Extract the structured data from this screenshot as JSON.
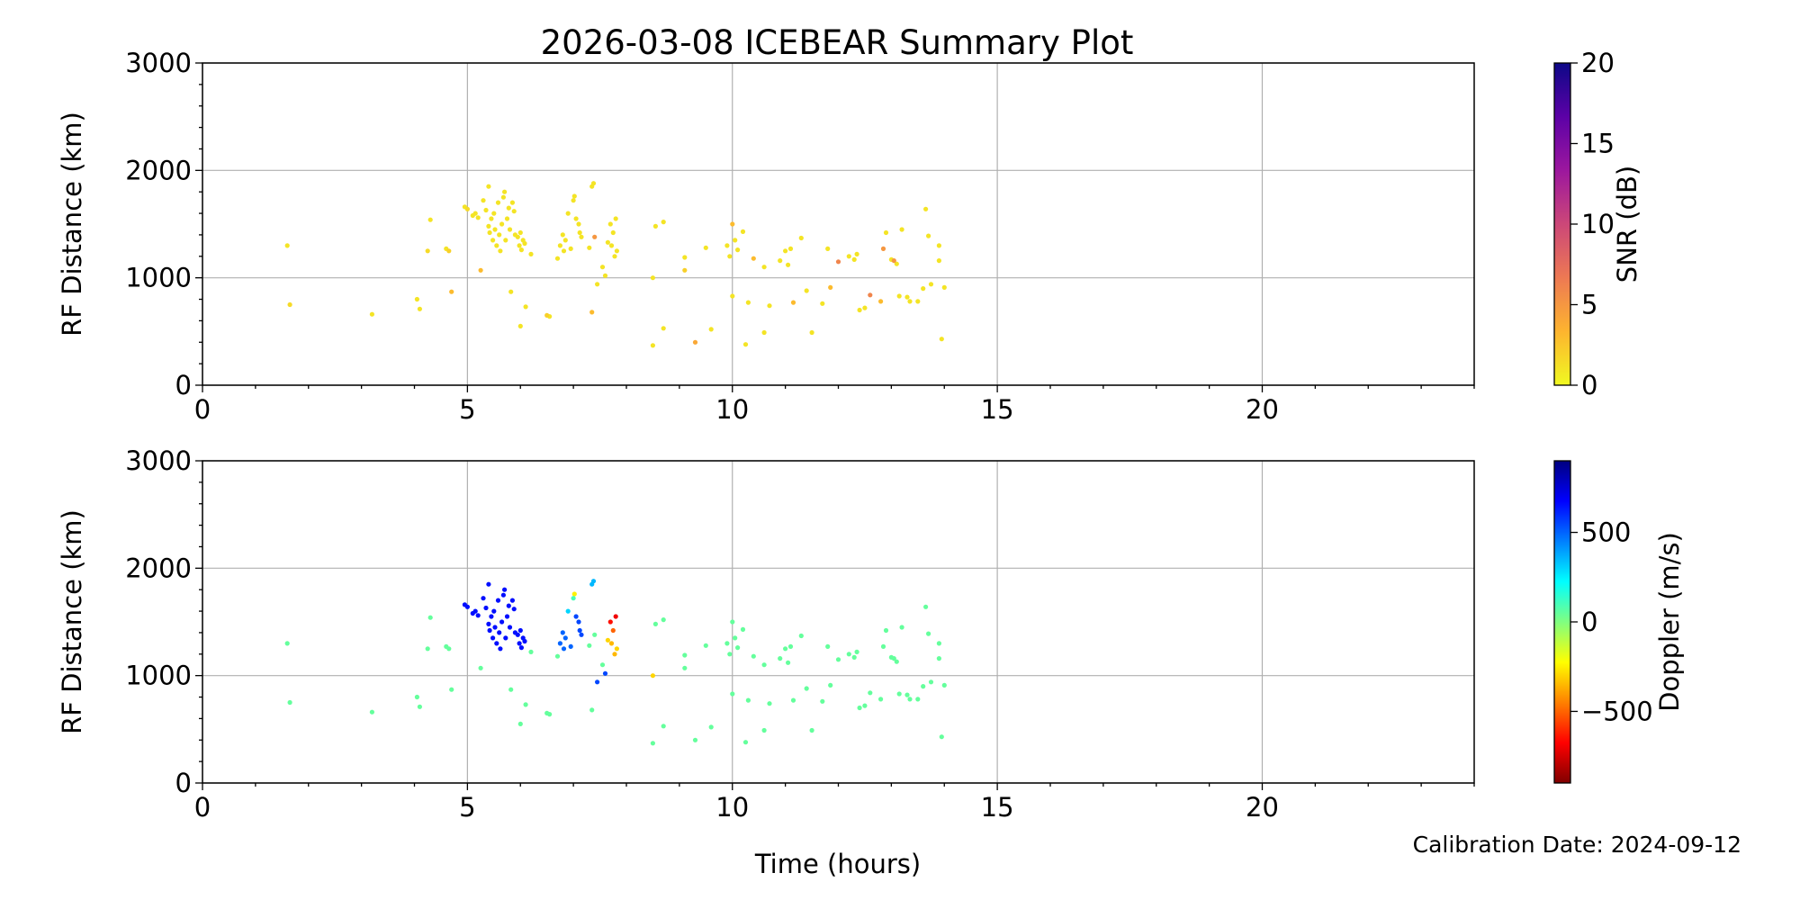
{
  "title": "2026-03-08 ICEBEAR Summary Plot",
  "calibration": "Calibration Date: 2024-09-12",
  "chart_data": [
    {
      "type": "scatter",
      "panel": "top",
      "xlabel": "Time (hours)",
      "ylabel": "RF Distance (km)",
      "xlim": [
        0,
        24
      ],
      "ylim": [
        0,
        3000
      ],
      "xticks": [
        0,
        5,
        10,
        15,
        20
      ],
      "yticks": [
        0,
        1000,
        2000,
        3000
      ],
      "grid": true,
      "colorbar": {
        "label": "SNR (dB)",
        "range": [
          0,
          20
        ],
        "ticks": [
          0,
          5,
          10,
          15,
          20
        ],
        "colormap": "plasma_r",
        "colors": [
          "#f0f921",
          "#fdb42f",
          "#ed7953",
          "#cc4778",
          "#9c179e",
          "#5c01a6",
          "#0d0887"
        ]
      },
      "points": [
        [
          1.6,
          1300,
          1
        ],
        [
          1.65,
          750,
          1.5
        ],
        [
          3.2,
          660,
          1
        ],
        [
          4.05,
          800,
          1
        ],
        [
          4.1,
          710,
          1
        ],
        [
          4.25,
          1250,
          1.5
        ],
        [
          4.3,
          1540,
          1
        ],
        [
          4.6,
          1270,
          1
        ],
        [
          4.65,
          1250,
          2
        ],
        [
          4.7,
          870,
          3
        ],
        [
          4.95,
          1660,
          1
        ],
        [
          5.0,
          1640,
          1.5
        ],
        [
          5.1,
          1580,
          1
        ],
        [
          5.15,
          1600,
          1
        ],
        [
          5.2,
          1560,
          1
        ],
        [
          5.25,
          1070,
          3
        ],
        [
          5.3,
          1720,
          1
        ],
        [
          5.35,
          1630,
          1
        ],
        [
          5.4,
          1850,
          1
        ],
        [
          5.4,
          1480,
          1
        ],
        [
          5.42,
          1420,
          1
        ],
        [
          5.45,
          1550,
          1
        ],
        [
          5.48,
          1350,
          1
        ],
        [
          5.5,
          1600,
          1
        ],
        [
          5.52,
          1450,
          1
        ],
        [
          5.55,
          1300,
          1
        ],
        [
          5.58,
          1700,
          1
        ],
        [
          5.6,
          1400,
          1
        ],
        [
          5.62,
          1250,
          1
        ],
        [
          5.65,
          1500,
          1
        ],
        [
          5.68,
          1750,
          1
        ],
        [
          5.7,
          1800,
          1
        ],
        [
          5.72,
          1350,
          1
        ],
        [
          5.75,
          1550,
          1
        ],
        [
          5.78,
          1650,
          1
        ],
        [
          5.8,
          1450,
          1
        ],
        [
          5.82,
          870,
          1
        ],
        [
          5.85,
          1700,
          1
        ],
        [
          5.88,
          1620,
          1
        ],
        [
          5.9,
          1400,
          1
        ],
        [
          5.95,
          1380,
          1
        ],
        [
          5.98,
          1300,
          1
        ],
        [
          6.0,
          1420,
          1
        ],
        [
          6.02,
          1260,
          1
        ],
        [
          6.05,
          1350,
          1
        ],
        [
          6.08,
          1320,
          1
        ],
        [
          6.0,
          550,
          1
        ],
        [
          6.1,
          730,
          1
        ],
        [
          6.2,
          1220,
          1
        ],
        [
          6.5,
          650,
          2
        ],
        [
          6.55,
          640,
          1
        ],
        [
          6.7,
          1180,
          1
        ],
        [
          6.75,
          1300,
          1
        ],
        [
          6.8,
          1400,
          1
        ],
        [
          6.82,
          1250,
          1
        ],
        [
          6.85,
          1350,
          1
        ],
        [
          6.9,
          1600,
          1
        ],
        [
          6.95,
          1270,
          1
        ],
        [
          7.0,
          1720,
          1
        ],
        [
          7.02,
          1760,
          1
        ],
        [
          7.05,
          1550,
          1
        ],
        [
          7.1,
          1500,
          1
        ],
        [
          7.12,
          1420,
          1
        ],
        [
          7.15,
          1380,
          1
        ],
        [
          7.3,
          1280,
          1
        ],
        [
          7.35,
          1850,
          1
        ],
        [
          7.38,
          1880,
          1
        ],
        [
          7.4,
          1380,
          5
        ],
        [
          7.35,
          680,
          3
        ],
        [
          7.45,
          940,
          1
        ],
        [
          7.55,
          1100,
          1
        ],
        [
          7.6,
          1020,
          1
        ],
        [
          7.65,
          1330,
          1
        ],
        [
          7.7,
          1500,
          1
        ],
        [
          7.72,
          1300,
          1
        ],
        [
          7.75,
          1420,
          1
        ],
        [
          7.78,
          1200,
          1
        ],
        [
          7.8,
          1550,
          1
        ],
        [
          7.82,
          1250,
          1
        ],
        [
          8.5,
          1000,
          1
        ],
        [
          8.5,
          370,
          1
        ],
        [
          8.55,
          1480,
          1
        ],
        [
          8.7,
          1520,
          1
        ],
        [
          8.7,
          530,
          1
        ],
        [
          9.1,
          1190,
          1
        ],
        [
          9.1,
          1070,
          2
        ],
        [
          9.3,
          400,
          4
        ],
        [
          9.5,
          1280,
          1
        ],
        [
          9.6,
          520,
          1
        ],
        [
          9.9,
          1300,
          1
        ],
        [
          9.95,
          1200,
          1
        ],
        [
          10.0,
          830,
          1
        ],
        [
          10.0,
          1500,
          3
        ],
        [
          10.05,
          1350,
          1
        ],
        [
          10.1,
          1260,
          1
        ],
        [
          10.2,
          1430,
          1
        ],
        [
          10.25,
          380,
          1
        ],
        [
          10.3,
          770,
          1
        ],
        [
          10.4,
          1180,
          3
        ],
        [
          10.6,
          490,
          1
        ],
        [
          10.6,
          1100,
          1
        ],
        [
          10.7,
          740,
          1
        ],
        [
          10.9,
          1160,
          1
        ],
        [
          11.0,
          1250,
          1
        ],
        [
          11.05,
          1120,
          1
        ],
        [
          11.1,
          1270,
          1
        ],
        [
          11.15,
          770,
          3
        ],
        [
          11.3,
          1370,
          1
        ],
        [
          11.4,
          880,
          1
        ],
        [
          11.5,
          490,
          1
        ],
        [
          11.7,
          760,
          1
        ],
        [
          11.8,
          1270,
          1
        ],
        [
          11.85,
          910,
          3
        ],
        [
          12.0,
          1150,
          6
        ],
        [
          12.2,
          1200,
          1
        ],
        [
          12.3,
          1170,
          1
        ],
        [
          12.35,
          1220,
          1
        ],
        [
          12.4,
          700,
          1
        ],
        [
          12.5,
          720,
          1
        ],
        [
          12.6,
          840,
          6
        ],
        [
          12.8,
          780,
          3
        ],
        [
          12.85,
          1270,
          5
        ],
        [
          12.9,
          1420,
          1
        ],
        [
          13.0,
          1170,
          1
        ],
        [
          13.05,
          1160,
          5
        ],
        [
          13.1,
          1130,
          1
        ],
        [
          13.15,
          830,
          1
        ],
        [
          13.2,
          1450,
          1
        ],
        [
          13.3,
          820,
          1
        ],
        [
          13.35,
          780,
          1
        ],
        [
          13.5,
          780,
          1
        ],
        [
          13.6,
          900,
          1
        ],
        [
          13.65,
          1640,
          1
        ],
        [
          13.7,
          1390,
          1
        ],
        [
          13.75,
          940,
          1
        ],
        [
          13.9,
          1300,
          1
        ],
        [
          13.9,
          1160,
          1
        ],
        [
          13.95,
          430,
          1
        ],
        [
          14.0,
          910,
          1
        ]
      ]
    },
    {
      "type": "scatter",
      "panel": "bottom",
      "xlabel": "Time (hours)",
      "ylabel": "RF Distance (km)",
      "xlim": [
        0,
        24
      ],
      "ylim": [
        0,
        3000
      ],
      "xticks": [
        0,
        5,
        10,
        15,
        20
      ],
      "yticks": [
        0,
        1000,
        2000,
        3000
      ],
      "grid": true,
      "colorbar": {
        "label": "Doppler (m/s)",
        "range": [
          -900,
          900
        ],
        "ticks": [
          -500,
          0,
          500
        ],
        "colormap": "jet_r",
        "colors": [
          "#800000",
          "#ff0000",
          "#ff8000",
          "#ffff00",
          "#80ff80",
          "#00ffff",
          "#0080ff",
          "#0000ff",
          "#000080"
        ]
      },
      "points": [
        [
          1.6,
          1300,
          50
        ],
        [
          1.65,
          750,
          50
        ],
        [
          3.2,
          660,
          50
        ],
        [
          4.05,
          800,
          50
        ],
        [
          4.1,
          710,
          50
        ],
        [
          4.25,
          1250,
          50
        ],
        [
          4.3,
          1540,
          50
        ],
        [
          4.6,
          1270,
          50
        ],
        [
          4.65,
          1250,
          50
        ],
        [
          4.7,
          870,
          50
        ],
        [
          4.95,
          1660,
          650
        ],
        [
          5.0,
          1640,
          650
        ],
        [
          5.1,
          1580,
          650
        ],
        [
          5.15,
          1600,
          650
        ],
        [
          5.2,
          1560,
          650
        ],
        [
          5.25,
          1070,
          50
        ],
        [
          5.3,
          1720,
          650
        ],
        [
          5.35,
          1630,
          650
        ],
        [
          5.4,
          1850,
          650
        ],
        [
          5.4,
          1480,
          650
        ],
        [
          5.42,
          1420,
          650
        ],
        [
          5.45,
          1550,
          650
        ],
        [
          5.48,
          1350,
          650
        ],
        [
          5.5,
          1600,
          650
        ],
        [
          5.52,
          1450,
          650
        ],
        [
          5.55,
          1300,
          650
        ],
        [
          5.58,
          1700,
          650
        ],
        [
          5.6,
          1400,
          650
        ],
        [
          5.62,
          1250,
          650
        ],
        [
          5.65,
          1500,
          650
        ],
        [
          5.68,
          1750,
          650
        ],
        [
          5.7,
          1800,
          650
        ],
        [
          5.72,
          1350,
          650
        ],
        [
          5.75,
          1550,
          650
        ],
        [
          5.78,
          1650,
          650
        ],
        [
          5.8,
          1450,
          650
        ],
        [
          5.82,
          870,
          50
        ],
        [
          5.85,
          1700,
          650
        ],
        [
          5.88,
          1620,
          650
        ],
        [
          5.9,
          1400,
          650
        ],
        [
          5.95,
          1380,
          650
        ],
        [
          5.98,
          1300,
          650
        ],
        [
          6.0,
          1420,
          650
        ],
        [
          6.02,
          1260,
          650
        ],
        [
          6.05,
          1350,
          650
        ],
        [
          6.08,
          1320,
          650
        ],
        [
          6.0,
          550,
          50
        ],
        [
          6.1,
          730,
          50
        ],
        [
          6.2,
          1220,
          50
        ],
        [
          6.5,
          650,
          50
        ],
        [
          6.55,
          640,
          50
        ],
        [
          6.7,
          1180,
          50
        ],
        [
          6.75,
          1300,
          500
        ],
        [
          6.8,
          1400,
          500
        ],
        [
          6.82,
          1250,
          500
        ],
        [
          6.85,
          1350,
          500
        ],
        [
          6.9,
          1600,
          300
        ],
        [
          6.95,
          1270,
          500
        ],
        [
          7.0,
          1720,
          100
        ],
        [
          7.02,
          1760,
          -250
        ],
        [
          7.05,
          1550,
          550
        ],
        [
          7.1,
          1500,
          550
        ],
        [
          7.12,
          1420,
          550
        ],
        [
          7.15,
          1380,
          550
        ],
        [
          7.3,
          1280,
          50
        ],
        [
          7.35,
          1850,
          350
        ],
        [
          7.38,
          1880,
          350
        ],
        [
          7.4,
          1380,
          50
        ],
        [
          7.35,
          680,
          50
        ],
        [
          7.45,
          940,
          550
        ],
        [
          7.55,
          1100,
          50
        ],
        [
          7.6,
          1020,
          550
        ],
        [
          7.65,
          1330,
          -300
        ],
        [
          7.7,
          1500,
          -650
        ],
        [
          7.72,
          1300,
          -350
        ],
        [
          7.75,
          1420,
          -500
        ],
        [
          7.78,
          1200,
          -350
        ],
        [
          7.8,
          1550,
          -700
        ],
        [
          7.82,
          1250,
          -300
        ],
        [
          8.5,
          1000,
          -300
        ],
        [
          8.5,
          370,
          50
        ],
        [
          8.55,
          1480,
          50
        ],
        [
          8.7,
          1520,
          50
        ],
        [
          8.7,
          530,
          50
        ],
        [
          9.1,
          1190,
          50
        ],
        [
          9.1,
          1070,
          50
        ],
        [
          9.3,
          400,
          50
        ],
        [
          9.5,
          1280,
          50
        ],
        [
          9.6,
          520,
          50
        ],
        [
          9.9,
          1300,
          50
        ],
        [
          9.95,
          1200,
          50
        ],
        [
          10.0,
          830,
          50
        ],
        [
          10.0,
          1500,
          50
        ],
        [
          10.05,
          1350,
          50
        ],
        [
          10.1,
          1260,
          50
        ],
        [
          10.2,
          1430,
          50
        ],
        [
          10.25,
          380,
          50
        ],
        [
          10.3,
          770,
          50
        ],
        [
          10.4,
          1180,
          50
        ],
        [
          10.6,
          490,
          50
        ],
        [
          10.6,
          1100,
          50
        ],
        [
          10.7,
          740,
          50
        ],
        [
          10.9,
          1160,
          50
        ],
        [
          11.0,
          1250,
          50
        ],
        [
          11.05,
          1120,
          50
        ],
        [
          11.1,
          1270,
          50
        ],
        [
          11.15,
          770,
          50
        ],
        [
          11.3,
          1370,
          50
        ],
        [
          11.4,
          880,
          50
        ],
        [
          11.5,
          490,
          50
        ],
        [
          11.7,
          760,
          50
        ],
        [
          11.8,
          1270,
          50
        ],
        [
          11.85,
          910,
          50
        ],
        [
          12.0,
          1150,
          50
        ],
        [
          12.2,
          1200,
          50
        ],
        [
          12.3,
          1170,
          50
        ],
        [
          12.35,
          1220,
          50
        ],
        [
          12.4,
          700,
          50
        ],
        [
          12.5,
          720,
          50
        ],
        [
          12.6,
          840,
          50
        ],
        [
          12.8,
          780,
          50
        ],
        [
          12.85,
          1270,
          50
        ],
        [
          12.9,
          1420,
          50
        ],
        [
          13.0,
          1170,
          50
        ],
        [
          13.05,
          1160,
          50
        ],
        [
          13.1,
          1130,
          50
        ],
        [
          13.15,
          830,
          50
        ],
        [
          13.2,
          1450,
          50
        ],
        [
          13.3,
          820,
          50
        ],
        [
          13.35,
          780,
          50
        ],
        [
          13.5,
          780,
          50
        ],
        [
          13.6,
          900,
          50
        ],
        [
          13.65,
          1640,
          50
        ],
        [
          13.7,
          1390,
          50
        ],
        [
          13.75,
          940,
          50
        ],
        [
          13.9,
          1300,
          50
        ],
        [
          13.9,
          1160,
          50
        ],
        [
          13.95,
          430,
          50
        ],
        [
          14.0,
          910,
          50
        ]
      ]
    }
  ]
}
